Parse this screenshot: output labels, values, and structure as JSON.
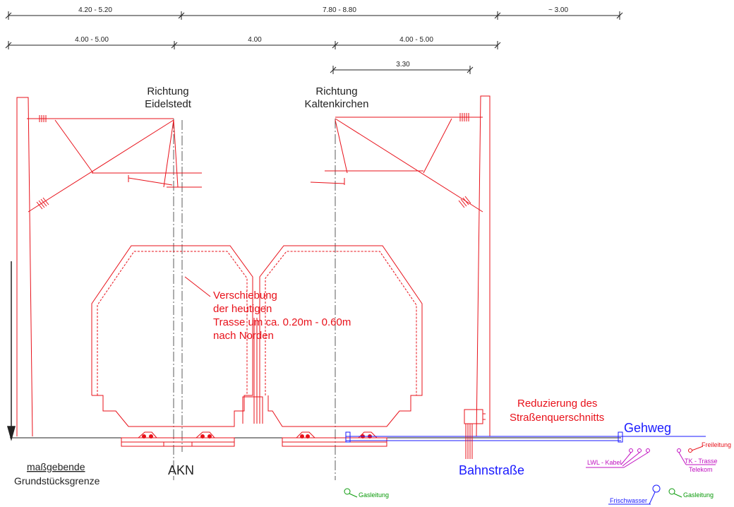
{
  "dimensions": {
    "row1": [
      "4.20 - 5.20",
      "7.80 - 8.80",
      "~ 3.00"
    ],
    "row2": [
      "4.00 - 5.00",
      "4.00",
      "4.00 - 5.00"
    ],
    "row3": "3.30"
  },
  "direction_left": [
    "Richtung",
    "Eidelstedt"
  ],
  "direction_right": [
    "Richtung",
    "Kaltenkirchen"
  ],
  "shift_note": [
    "Verschiebung",
    "der heutigen",
    "Trasse um ca. 0.20m - 0.60m",
    "nach Norden"
  ],
  "road_note": [
    "Reduzierung des",
    "Straßenquerschnitts"
  ],
  "labels": {
    "gehweg": "Gehweg",
    "akn": "AKN",
    "bahnstrasse": "Bahnstraße",
    "boundary_1": "maßgebende",
    "boundary_2": "Grundstücksgrenze"
  },
  "utilities": {
    "freileitung": "Freileitung",
    "lwl_kabel": "LWL - Kabel",
    "tk_trasse": "TK - Trasse",
    "telekom": "Telekom",
    "frischwasser": "Frischwasser",
    "gasleitung_left": "Gasleitung",
    "gasleitung_right": "Gasleitung"
  },
  "colors": {
    "catenary": "#e8111a",
    "road": "#1a1aff",
    "gas": "#0a9a0a",
    "telecom": "#c010c0"
  }
}
